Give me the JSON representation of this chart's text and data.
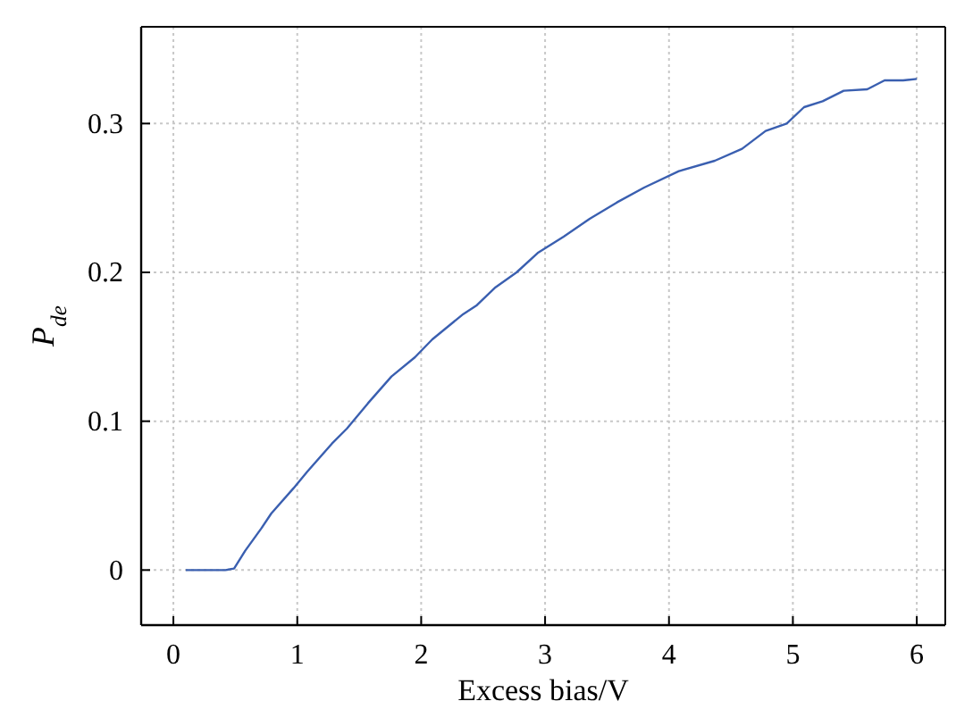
{
  "chart_data": {
    "type": "line",
    "xlabel": "Excess bias/V",
    "ylabel": "P$_{de}$",
    "xlim": [
      -0.26,
      6.23
    ],
    "ylim": [
      -0.037,
      0.365
    ],
    "xticks": [
      0,
      1,
      2,
      3,
      4,
      5,
      6
    ],
    "yticks": [
      0,
      0.1,
      0.2,
      0.3
    ],
    "grid": true,
    "line_style": "solid",
    "series": [
      {
        "color": "#3a5fb0",
        "x": [
          0.1,
          0.42,
          0.49,
          0.58,
          0.71,
          0.79,
          0.97,
          1.08,
          1.28,
          1.4,
          1.57,
          1.76,
          1.95,
          2.09,
          2.34,
          2.45,
          2.6,
          2.77,
          2.94,
          3.15,
          3.36,
          3.58,
          3.8,
          4.08,
          4.37,
          4.59,
          4.78,
          4.95,
          5.09,
          5.24,
          5.41,
          5.6,
          5.74,
          5.89,
          6.0
        ],
        "values": [
          0,
          0,
          0.001,
          0.013,
          0.028,
          0.038,
          0.055,
          0.066,
          0.085,
          0.095,
          0.112,
          0.13,
          0.143,
          0.155,
          0.172,
          0.178,
          0.19,
          0.2,
          0.213,
          0.224,
          0.236,
          0.247,
          0.257,
          0.268,
          0.275,
          0.283,
          0.295,
          0.3,
          0.311,
          0.315,
          0.322,
          0.323,
          0.329,
          0.329,
          0.33
        ]
      }
    ]
  }
}
